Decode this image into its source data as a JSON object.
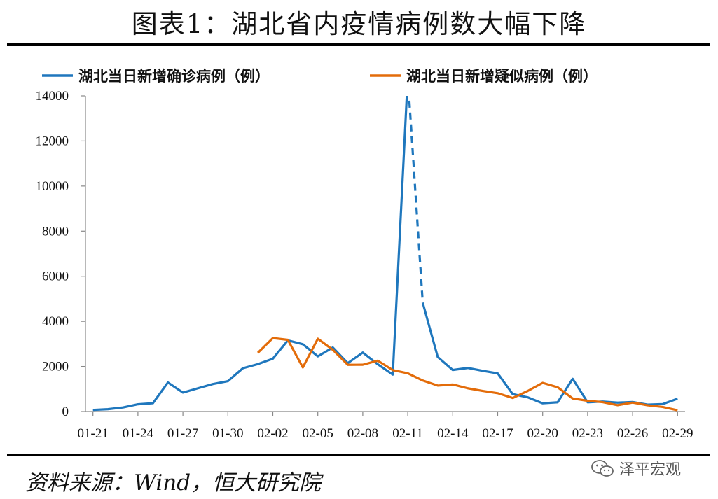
{
  "header": {
    "title": "图表1：湖北省内疫情病例数大幅下降"
  },
  "footer": {
    "source": "资料来源：Wind，恒大研究院",
    "watermark": "泽平宏观"
  },
  "icons": {
    "watermark_icon": "wechat-icon"
  },
  "colors": {
    "confirmed": "#1F77BD",
    "suspected": "#E36C0A"
  },
  "chart_data": {
    "type": "line",
    "x": [
      "01-21",
      "01-22",
      "01-23",
      "01-24",
      "01-25",
      "01-26",
      "01-27",
      "01-28",
      "01-29",
      "01-30",
      "01-31",
      "02-01",
      "02-02",
      "02-03",
      "02-04",
      "02-05",
      "02-06",
      "02-07",
      "02-08",
      "02-09",
      "02-10",
      "02-11",
      "02-12",
      "02-13",
      "02-14",
      "02-15",
      "02-16",
      "02-17",
      "02-18",
      "02-19",
      "02-20",
      "02-21",
      "02-22",
      "02-23",
      "02-24",
      "02-25",
      "02-26",
      "02-27",
      "02-28",
      "02-29"
    ],
    "xticks": [
      "01-21",
      "01-24",
      "01-27",
      "01-30",
      "02-02",
      "02-05",
      "02-08",
      "02-11",
      "02-14",
      "02-17",
      "02-20",
      "02-23",
      "02-26",
      "02-29"
    ],
    "yticks": [
      "0",
      "2000",
      "4000",
      "6000",
      "8000",
      "10000",
      "12000",
      "14000"
    ],
    "ylim": [
      0,
      14000
    ],
    "legend": "top",
    "series": [
      {
        "name": "湖北当日新增确诊病例（例）",
        "values": [
          72,
          105,
          180,
          323,
          371,
          1291,
          840,
          1032,
          1220,
          1347,
          1921,
          2103,
          2345,
          3156,
          2987,
          2447,
          2841,
          2147,
          2618,
          2097,
          1638,
          14840,
          4823,
          2420,
          1843,
          1933,
          1807,
          1693,
          775,
          631,
          366,
          411,
          1451,
          409,
          444,
          396,
          423,
          308,
          331,
          570
        ],
        "dashed_segment": [
          "02-11",
          "02-12"
        ]
      },
      {
        "name": "湖北当日新增疑似病例（例）",
        "values": [
          null,
          null,
          null,
          null,
          null,
          null,
          null,
          null,
          null,
          null,
          null,
          2606,
          3260,
          3182,
          1957,
          3230,
          2738,
          2073,
          2076,
          2257,
          1838,
          1697,
          1377,
          1151,
          1200,
          1032,
          914,
          814,
          601,
          912,
          1273,
          1076,
          580,
          477,
          417,
          283,
          398,
          278,
          203,
          56
        ]
      }
    ]
  }
}
